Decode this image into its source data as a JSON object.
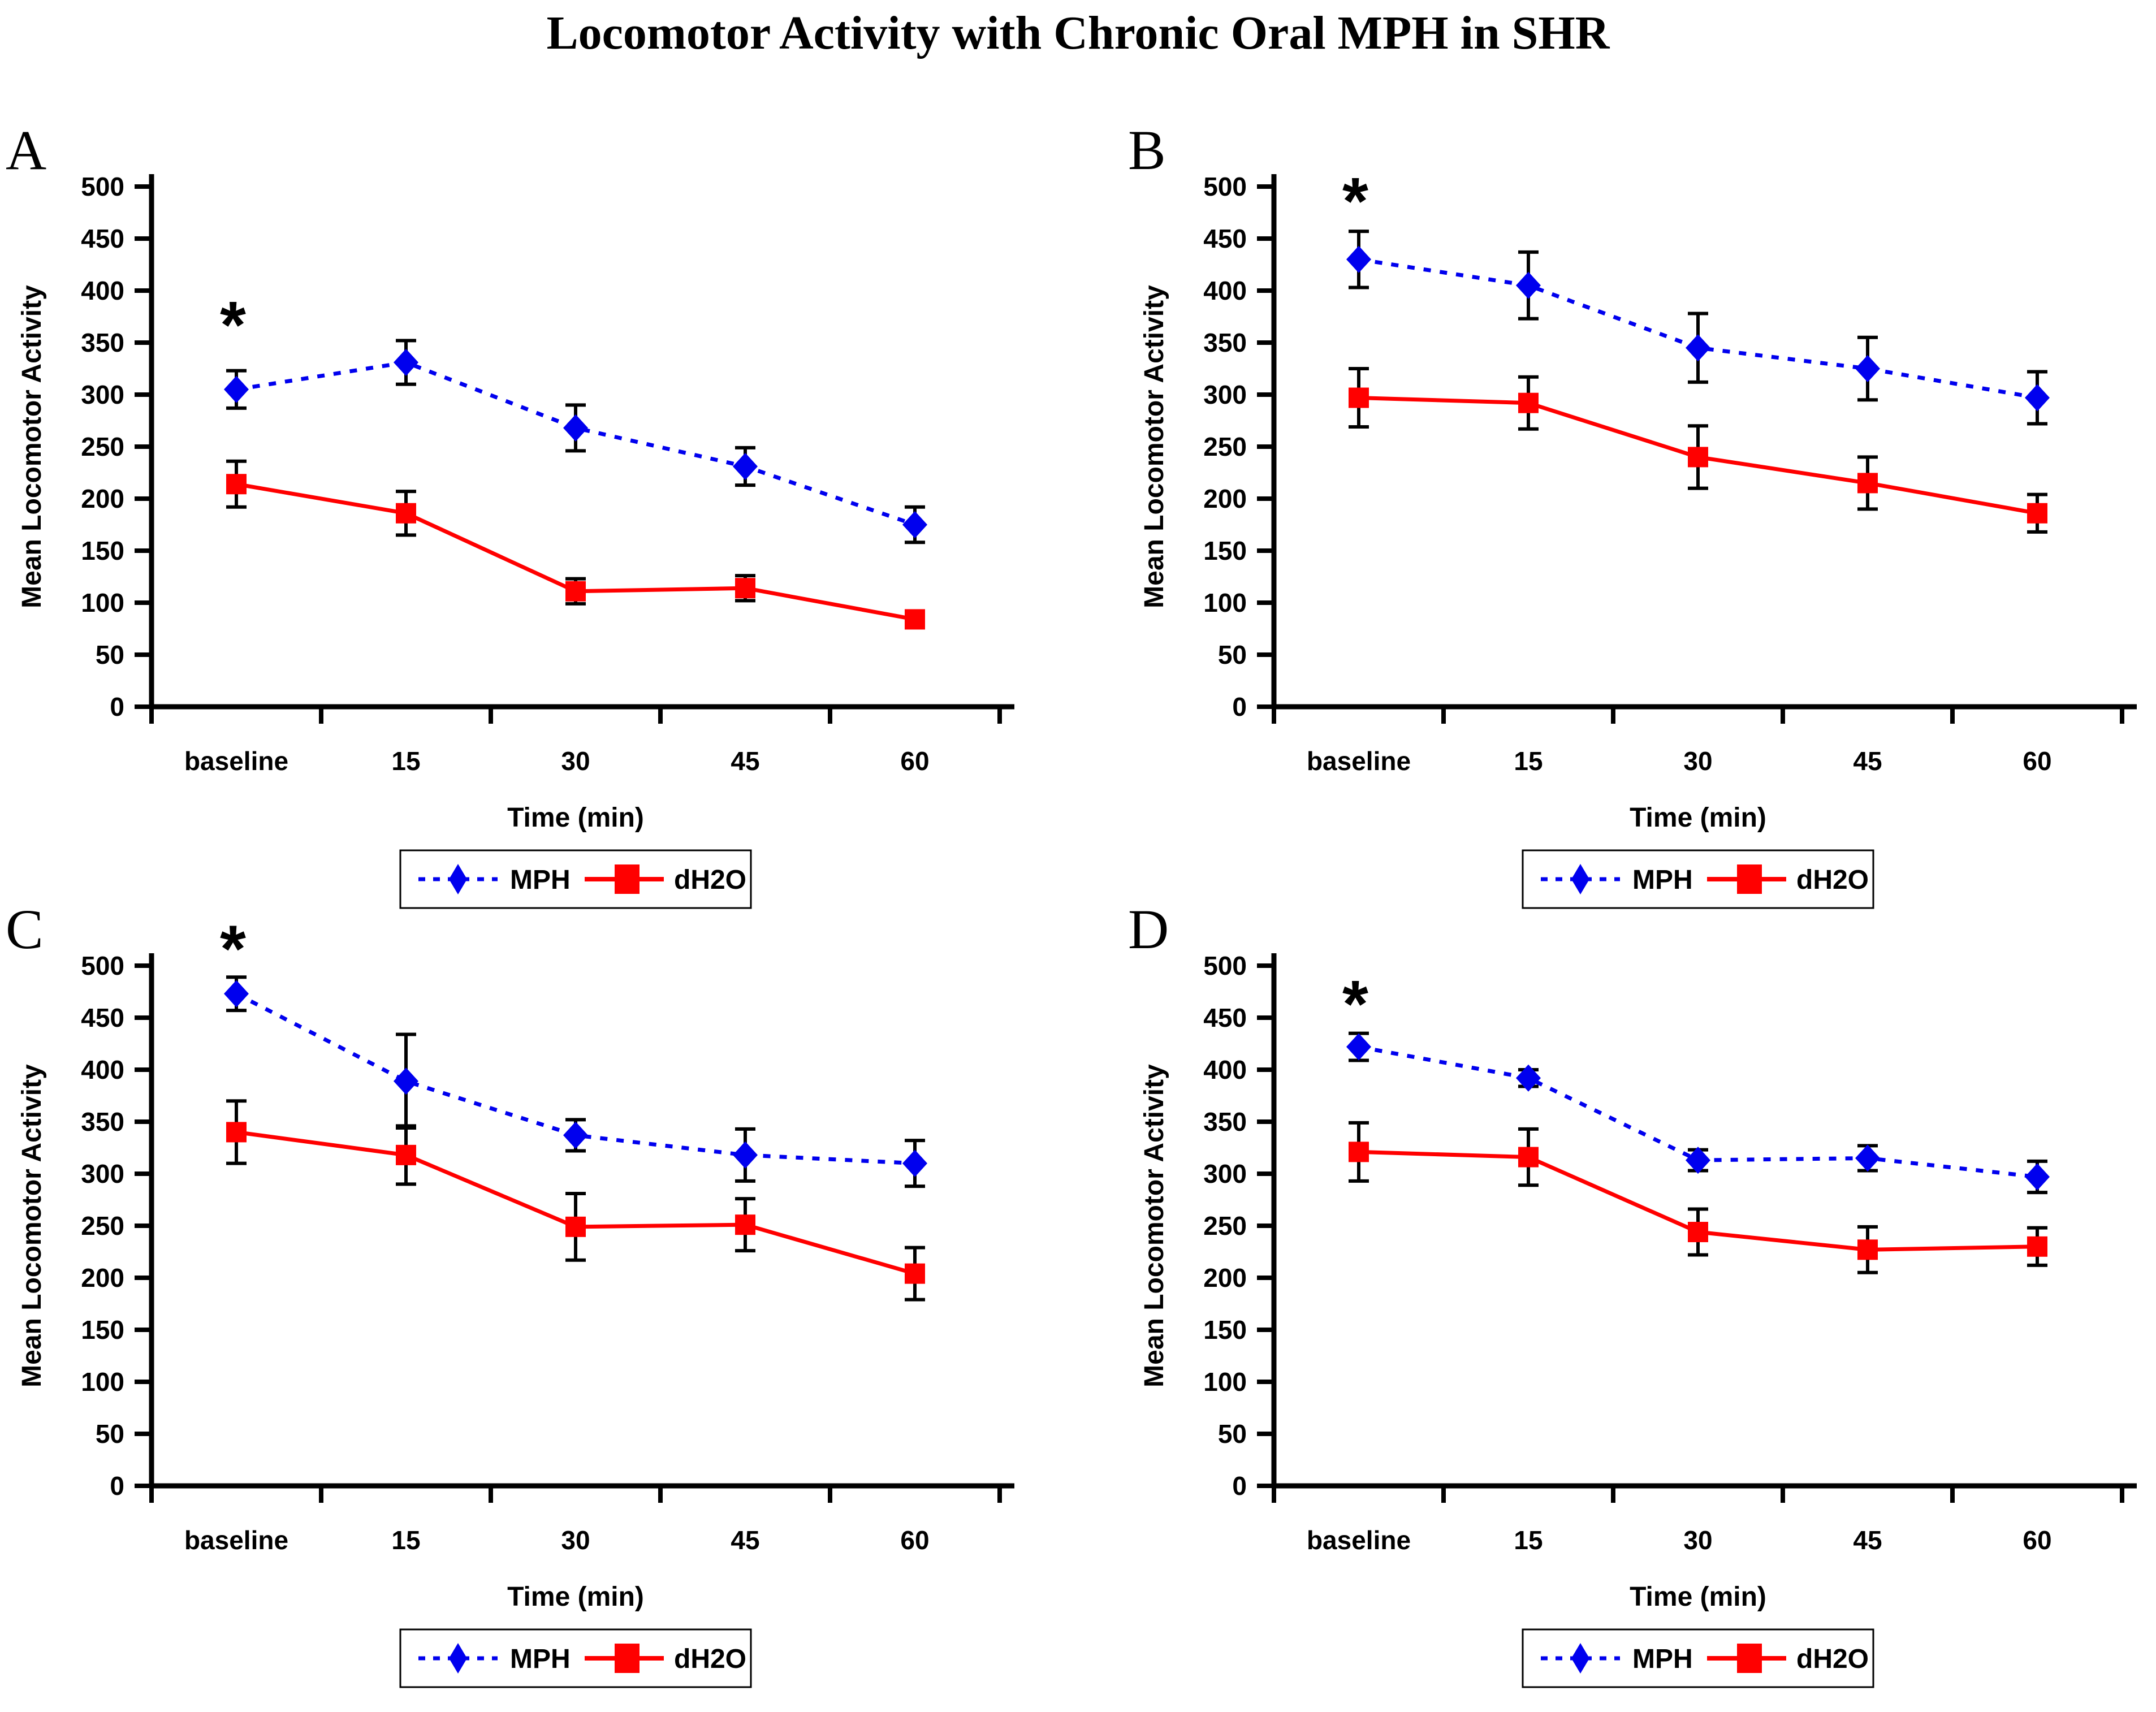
{
  "title": "Locomotor Activity with Chronic Oral MPH in SHR",
  "colors": {
    "mph": "#0000EE",
    "dh2o": "#FF0000",
    "axis": "#000000"
  },
  "chart_data": [
    {
      "type": "line",
      "panel": "A",
      "categories": [
        "baseline",
        "15",
        "30",
        "45",
        "60"
      ],
      "xlabel": "Time (min)",
      "ylabel": "Mean Locomotor Activity",
      "ylim": [
        0,
        500
      ],
      "ystep": 50,
      "grid": false,
      "legend_position": "bottom",
      "series": [
        {
          "name": "MPH",
          "color": "#0000EE",
          "line_style": "dashed",
          "marker": "diamond",
          "values": [
            305,
            331,
            268,
            231,
            175
          ],
          "errors": [
            18,
            21,
            22,
            18,
            17
          ]
        },
        {
          "name": "dH2O",
          "color": "#FF0000",
          "line_style": "solid",
          "marker": "square",
          "values": [
            214,
            186,
            111,
            114,
            84
          ],
          "errors": [
            22,
            21,
            12,
            12,
            8
          ]
        }
      ],
      "annotation": {
        "text": "*",
        "category_index": 0,
        "value": 368
      }
    },
    {
      "type": "line",
      "panel": "B",
      "categories": [
        "baseline",
        "15",
        "30",
        "45",
        "60"
      ],
      "xlabel": "Time (min)",
      "ylabel": "Mean Locomotor Activity",
      "ylim": [
        0,
        500
      ],
      "ystep": 50,
      "grid": false,
      "legend_position": "bottom",
      "series": [
        {
          "name": "MPH",
          "color": "#0000EE",
          "line_style": "dashed",
          "marker": "diamond",
          "values": [
            430,
            405,
            345,
            325,
            297
          ],
          "errors": [
            27,
            32,
            33,
            30,
            25
          ]
        },
        {
          "name": "dH2O",
          "color": "#FF0000",
          "line_style": "solid",
          "marker": "square",
          "values": [
            297,
            292,
            240,
            215,
            186
          ],
          "errors": [
            28,
            25,
            30,
            25,
            18
          ]
        }
      ],
      "annotation": {
        "text": "*",
        "category_index": 0,
        "value": 487
      }
    },
    {
      "type": "line",
      "panel": "C",
      "categories": [
        "baseline",
        "15",
        "30",
        "45",
        "60"
      ],
      "xlabel": "Time (min)",
      "ylabel": "Mean Locomotor Activity",
      "ylim": [
        0,
        500
      ],
      "ystep": 50,
      "grid": false,
      "legend_position": "bottom",
      "series": [
        {
          "name": "MPH",
          "color": "#0000EE",
          "line_style": "dashed",
          "marker": "diamond",
          "values": [
            473,
            389,
            337,
            318,
            310
          ],
          "errors": [
            16,
            45,
            15,
            25,
            22
          ]
        },
        {
          "name": "dH2O",
          "color": "#FF0000",
          "line_style": "solid",
          "marker": "square",
          "values": [
            340,
            318,
            249,
            251,
            204
          ],
          "errors": [
            30,
            28,
            32,
            25,
            25
          ]
        }
      ],
      "annotation": {
        "text": "*",
        "category_index": 0,
        "value": 517
      }
    },
    {
      "type": "line",
      "panel": "D",
      "categories": [
        "baseline",
        "15",
        "30",
        "45",
        "60"
      ],
      "xlabel": "Time (min)",
      "ylabel": "Mean Locomotor Activity",
      "ylim": [
        0,
        500
      ],
      "ystep": 50,
      "grid": false,
      "legend_position": "bottom",
      "series": [
        {
          "name": "MPH",
          "color": "#0000EE",
          "line_style": "dashed",
          "marker": "diamond",
          "values": [
            422,
            392,
            313,
            315,
            297
          ],
          "errors": [
            13,
            8,
            10,
            12,
            15
          ]
        },
        {
          "name": "dH2O",
          "color": "#FF0000",
          "line_style": "solid",
          "marker": "square",
          "values": [
            321,
            316,
            244,
            227,
            230
          ],
          "errors": [
            28,
            27,
            22,
            22,
            18
          ]
        }
      ],
      "annotation": {
        "text": "*",
        "category_index": 0,
        "value": 464
      }
    }
  ]
}
